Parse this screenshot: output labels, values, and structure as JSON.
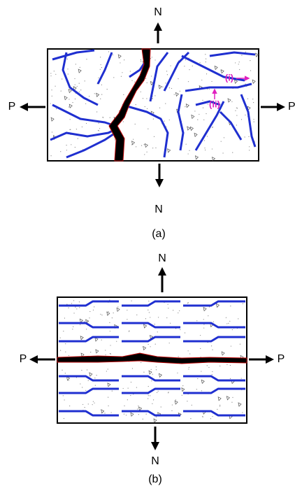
{
  "panel_a": {
    "top_force": "N",
    "left_force": "P",
    "right_force": "P",
    "bottom_force": "N",
    "crack_labels": [
      "(i)",
      "(ii)"
    ],
    "caption": "(a)"
  },
  "panel_b": {
    "top_force": "N",
    "left_force": "P",
    "right_force": "P",
    "bottom_force": "N",
    "caption": "(b)"
  }
}
